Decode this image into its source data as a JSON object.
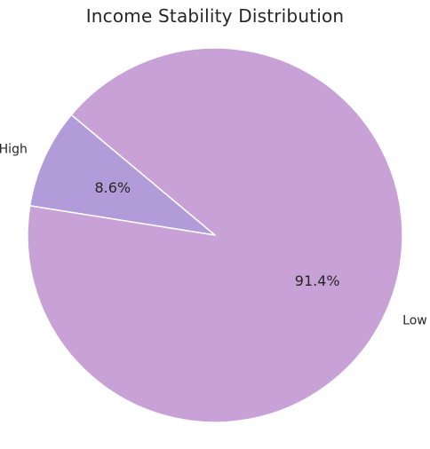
{
  "chart_data": {
    "type": "pie",
    "title": "Income Stability Distribution",
    "categories": [
      "High",
      "Low"
    ],
    "values": [
      8.6,
      91.4
    ],
    "value_labels": [
      "8.6%",
      "91.4%"
    ],
    "colors": [
      "#b19cd9",
      "#c8a2d6"
    ],
    "start_angle_deg": 140,
    "legend": "none"
  }
}
